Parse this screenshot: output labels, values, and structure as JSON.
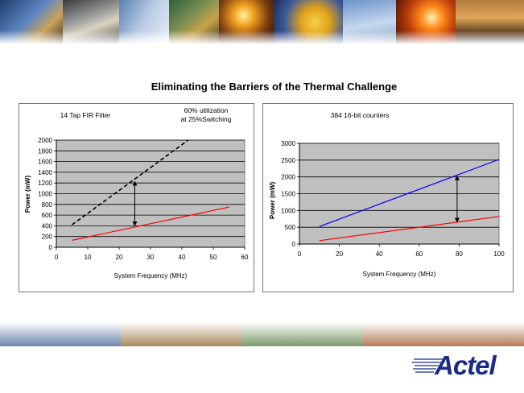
{
  "slide": {
    "title": "Eliminating the Barriers of the Thermal Challenge",
    "brand": "Actel"
  },
  "banner": {
    "images": [
      "satellite-image",
      "cockpit-image",
      "jet-image",
      "circuit-board-image",
      "sunrise-image",
      "radar-image",
      "jet-image-2",
      "sunset-image",
      "tank-image"
    ]
  },
  "chart_data": [
    {
      "type": "line",
      "title": "14 Tap FIR Filter",
      "annotation_lines": [
        "60% utilization",
        "at 25%Switching"
      ],
      "xlabel": "System Frequency (MHz)",
      "ylabel": "Power (mW)",
      "xlim": [
        0,
        60
      ],
      "ylim": [
        0,
        2000
      ],
      "xticks": [
        0,
        10,
        20,
        30,
        40,
        50,
        60
      ],
      "yticks": [
        0,
        200,
        400,
        600,
        800,
        1000,
        1200,
        1400,
        1600,
        1800,
        2000
      ],
      "grid": true,
      "plot_background": "#c0c0c0",
      "series": [
        {
          "color": "#000000",
          "dashed": true,
          "points": [
            [
              5,
              420
            ],
            [
              42,
              2000
            ]
          ]
        },
        {
          "color": "#ff0000",
          "dashed": false,
          "points": [
            [
              5,
              130
            ],
            [
              55,
              750
            ]
          ]
        }
      ],
      "arrow": {
        "x": 25,
        "y1": 1230,
        "y2": 400
      }
    },
    {
      "type": "line",
      "title": "384 16-bit counters",
      "xlabel": "System Frequency (MHz)",
      "ylabel": "Power  (mW)",
      "xlim": [
        0,
        100
      ],
      "ylim": [
        0,
        3000
      ],
      "xticks": [
        0,
        20,
        40,
        60,
        80,
        100
      ],
      "yticks": [
        0,
        500,
        1000,
        1500,
        2000,
        2500,
        3000
      ],
      "grid": true,
      "plot_background": "#c0c0c0",
      "series": [
        {
          "color": "#0000ff",
          "dashed": false,
          "points": [
            [
              10,
              520
            ],
            [
              100,
              2520
            ]
          ]
        },
        {
          "color": "#ff0000",
          "dashed": false,
          "points": [
            [
              10,
              100
            ],
            [
              100,
              820
            ]
          ]
        }
      ],
      "arrow": {
        "x": 79,
        "y1": 2030,
        "y2": 650
      }
    }
  ]
}
